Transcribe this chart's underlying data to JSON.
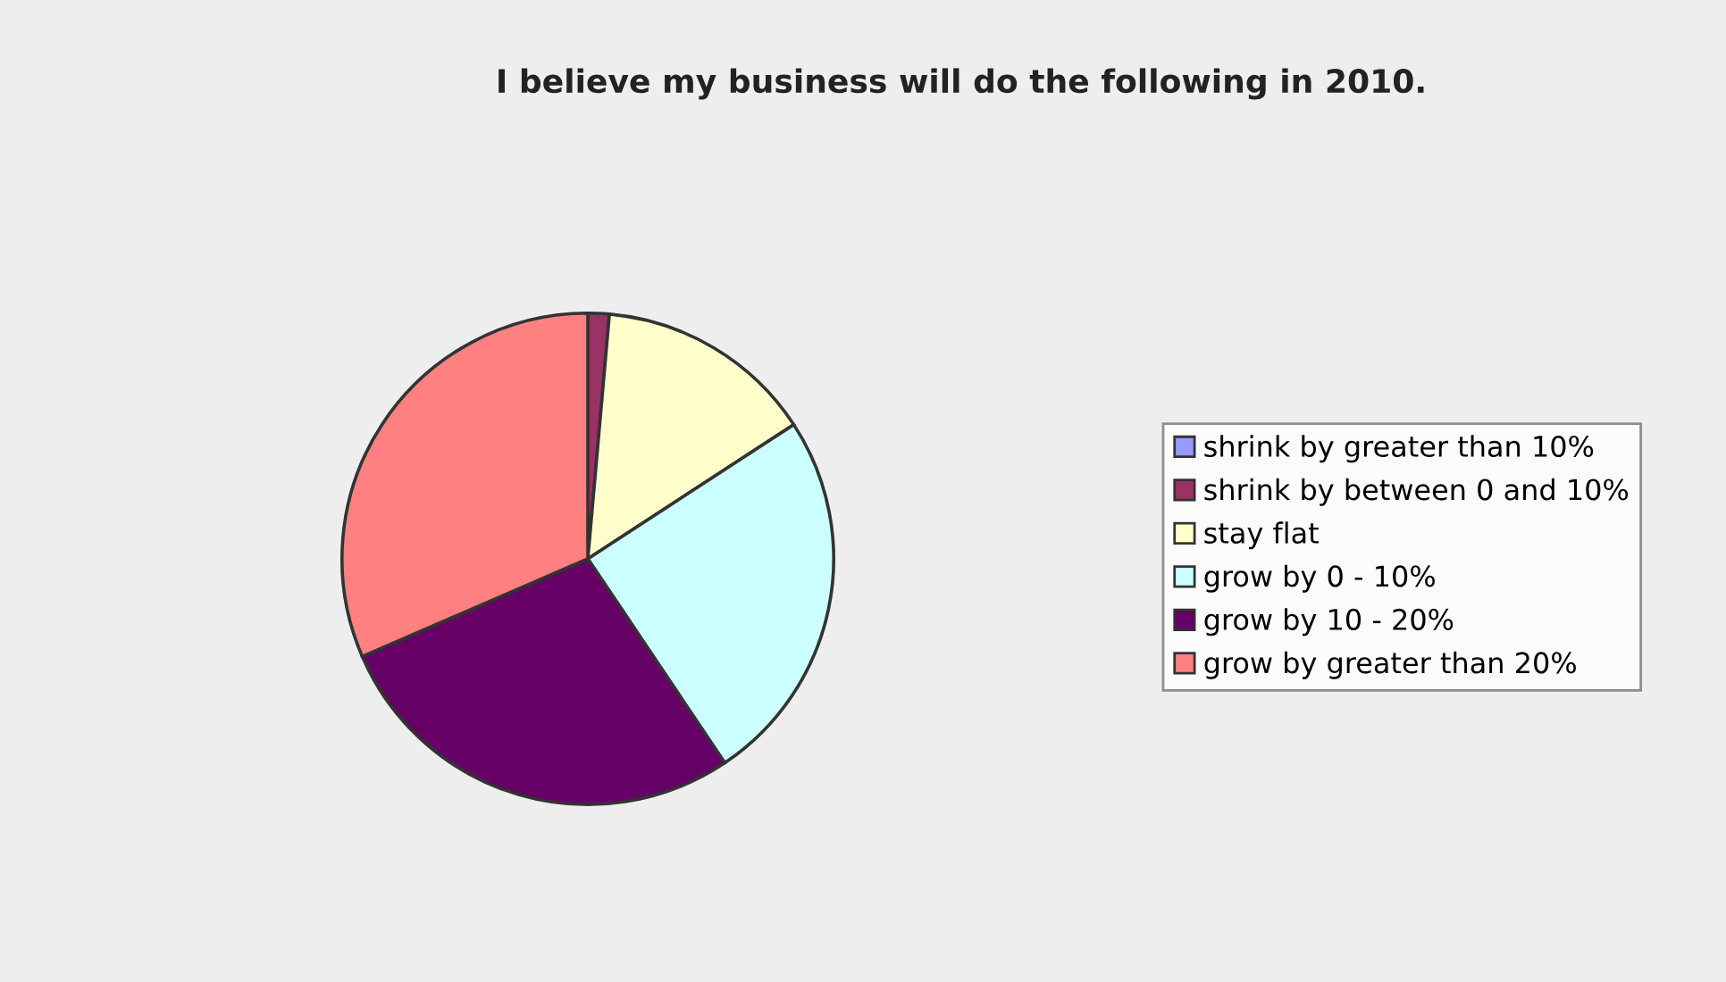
{
  "chart_data": {
    "type": "pie",
    "title": "I believe my business will do the following in 2010.",
    "categories": [
      "shrink by greater than 10%",
      "shrink by between 0 and 10%",
      "stay flat",
      "grow by 0 - 10%",
      "grow by 10 - 20%",
      "grow by greater than 20%"
    ],
    "values": [
      0,
      1.4,
      14.4,
      24.8,
      27.9,
      31.5
    ],
    "colors": [
      "#9999ff",
      "#993366",
      "#ffffcc",
      "#ccffff",
      "#660066",
      "#ff8080"
    ],
    "legend": "right"
  }
}
